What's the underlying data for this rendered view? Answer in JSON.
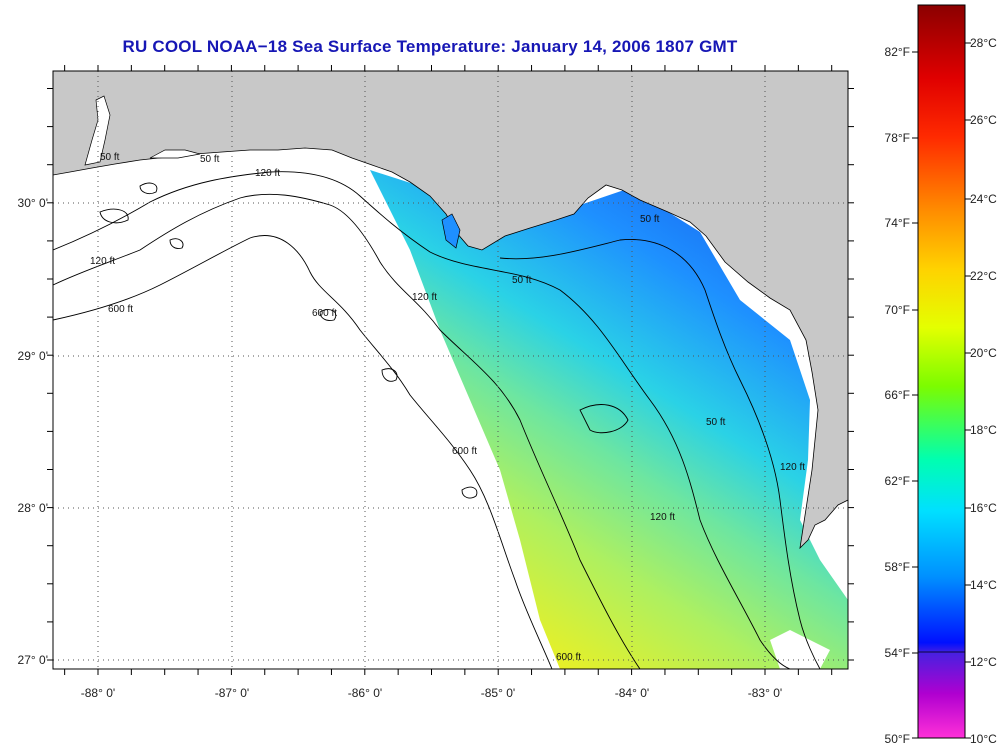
{
  "title": "RU COOL  NOAA−18  Sea Surface Temperature:  January 14, 2006 1807 GMT",
  "map": {
    "lon_range": [
      -88.3,
      -82.55
    ],
    "lat_range": [
      26.93,
      30.86
    ],
    "lon_ticks": [
      "-88° 0'",
      "-87° 0'",
      "-86° 0'",
      "-85° 0'",
      "-84° 0'",
      "-83° 0'"
    ],
    "lat_ticks": [
      "30° 0'",
      "29° 0'",
      "28° 0'",
      "27° 0'"
    ],
    "grid": "dotted",
    "land_color": "#c8c8c8",
    "contour_labels": [
      "50 ft",
      "120 ft",
      "600 ft"
    ]
  },
  "colorbar": {
    "fahrenheit": [
      "82°F",
      "78°F",
      "74°F",
      "70°F",
      "66°F",
      "62°F",
      "58°F",
      "54°F",
      "50°F"
    ],
    "celsius": [
      "28°C",
      "26°C",
      "24°C",
      "22°C",
      "20°C",
      "18°C",
      "16°C",
      "14°C",
      "12°C",
      "10°C"
    ],
    "colors": [
      "#8b0000",
      "#ff0000",
      "#ff8c00",
      "#ffff00",
      "#7fff00",
      "#00ffff",
      "#0080ff",
      "#0000ff",
      "#9400d3",
      "#ff00ff"
    ]
  }
}
